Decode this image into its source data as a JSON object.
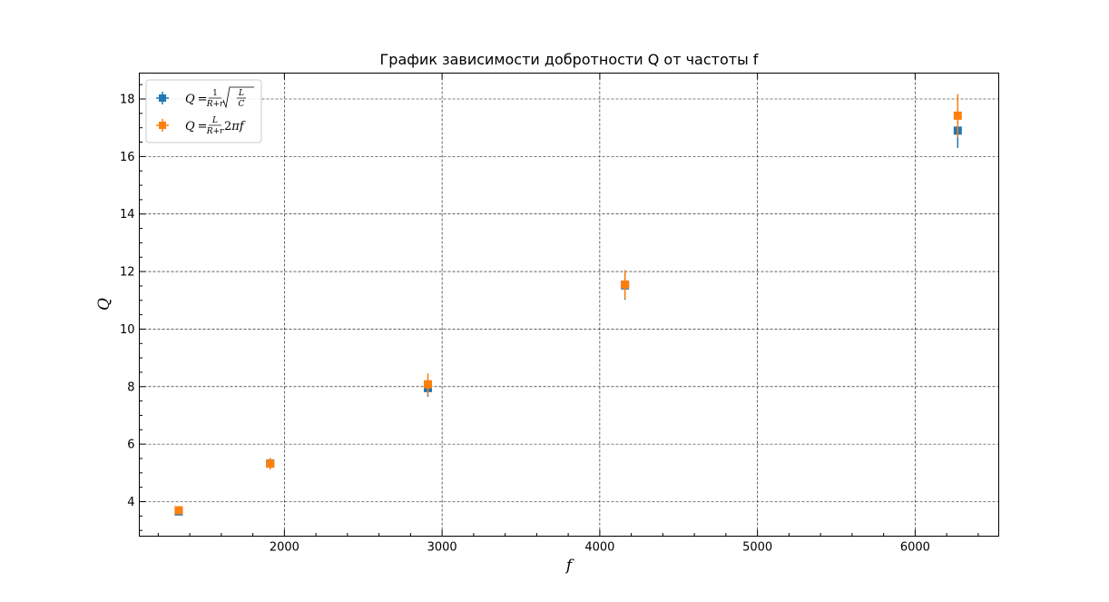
{
  "chart_data": {
    "type": "scatter",
    "title": "График зависимости добротности Q от частоты f",
    "xlabel": "f",
    "ylabel": "Q",
    "xlim": [
      1080,
      6530
    ],
    "ylim": [
      2.8,
      18.9
    ],
    "x_major_ticks": [
      2000,
      3000,
      4000,
      5000,
      6000
    ],
    "x_minor_tick_step": 200,
    "y_major_ticks": [
      4,
      6,
      8,
      10,
      12,
      14,
      16,
      18
    ],
    "y_minor_tick_step": 0.5,
    "grid": true,
    "legend_position": "top-left",
    "series": [
      {
        "legend_tex": "Q = 1/(R+r)·√(L/C)",
        "color": "#1f77b4",
        "marker": "square",
        "points": [
          {
            "x": 1330,
            "y": 3.66,
            "yerr": 0.1,
            "xerr": 15
          },
          {
            "x": 1910,
            "y": 5.33,
            "yerr": 0.18,
            "xerr": 15
          },
          {
            "x": 2910,
            "y": 7.95,
            "yerr": 0.3,
            "xerr": 15
          },
          {
            "x": 4160,
            "y": 11.52,
            "yerr": 0.5,
            "xerr": 15
          },
          {
            "x": 6270,
            "y": 16.9,
            "yerr": 0.6,
            "xerr": 15
          }
        ]
      },
      {
        "legend_tex": "Q = L/(R+r)·2πf",
        "color": "#ff7f0e",
        "marker": "square",
        "points": [
          {
            "x": 1330,
            "y": 3.7,
            "yerr": 0.12,
            "xerr": 15
          },
          {
            "x": 1910,
            "y": 5.32,
            "yerr": 0.2,
            "xerr": 15
          },
          {
            "x": 2910,
            "y": 8.08,
            "yerr": 0.38,
            "xerr": 15
          },
          {
            "x": 4160,
            "y": 11.55,
            "yerr": 0.5,
            "xerr": 15
          },
          {
            "x": 6270,
            "y": 17.42,
            "yerr": 0.75,
            "xerr": 15
          }
        ]
      }
    ]
  }
}
